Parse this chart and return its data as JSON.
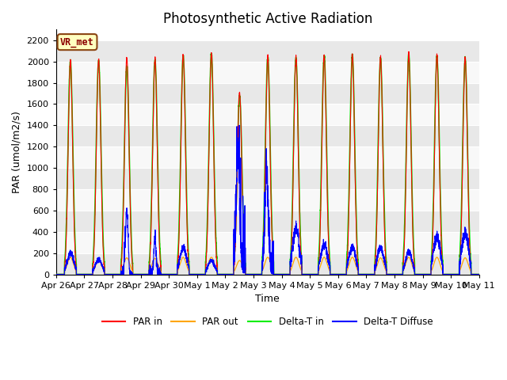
{
  "title": "Photosynthetic Active Radiation",
  "ylabel": "PAR (umol/m2/s)",
  "xlabel": "Time",
  "station_label": "VR_met",
  "ylim": [
    0,
    2300
  ],
  "background_color": "#ffffff",
  "plot_bg_color": "#ffffff",
  "grid_color": "#d8d8d8",
  "colors": {
    "PAR_in": "#ff0000",
    "PAR_out": "#ffa500",
    "Delta_T_in": "#00ee00",
    "Delta_T_Diffuse": "#0000ff"
  },
  "legend_labels": [
    "PAR in",
    "PAR out",
    "Delta-T in",
    "Delta-T Diffuse"
  ],
  "yticks": [
    0,
    200,
    400,
    600,
    800,
    1000,
    1200,
    1400,
    1600,
    1800,
    2000,
    2200
  ],
  "xtick_labels": [
    "Apr 26",
    "Apr 27",
    "Apr 28",
    "Apr 29",
    "Apr 30",
    "May 1",
    "May 2",
    "May 3",
    "May 4",
    "May 5",
    "May 6",
    "May 7",
    "May 8",
    "May 9",
    "May 10",
    "May 11"
  ],
  "title_fontsize": 12,
  "label_fontsize": 9,
  "tick_fontsize": 8,
  "band_colors": [
    "#e8e8e8",
    "#f8f8f8"
  ]
}
